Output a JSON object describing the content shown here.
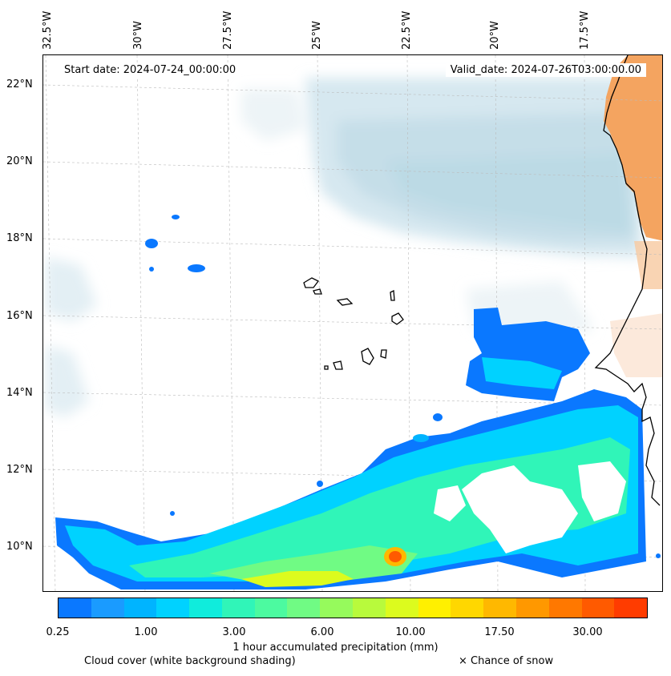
{
  "map": {
    "lon_labels": [
      "32.5°W",
      "30°W",
      "27.5°W",
      "25°W",
      "22.5°W",
      "20°W",
      "17.5°W"
    ],
    "lat_labels": [
      "22°N",
      "20°N",
      "18°N",
      "16°N",
      "14°N",
      "12°N",
      "10°N"
    ],
    "start_date": "Start date: 2024-07-24_00:00:00",
    "valid_date": "Valid_date: 2024-07-26T03:00:00.00",
    "layers": [
      "Cloud cover shading",
      "Precipitation contours",
      "Land / dust shading",
      "Coastlines",
      "Graticule"
    ]
  },
  "colorbar": {
    "colors": [
      "#0a78ff",
      "#1a9bff",
      "#00b4ff",
      "#00d2ff",
      "#10ecdc",
      "#30f5b8",
      "#4cfaa0",
      "#70fb84",
      "#96fa5c",
      "#b8fa3c",
      "#dcfb1e",
      "#fff000",
      "#ffd700",
      "#ffb800",
      "#ff9800",
      "#ff7800",
      "#ff5a00",
      "#ff3c00"
    ],
    "ticks": [
      "0.25",
      "1.00",
      "3.00",
      "6.00",
      "10.00",
      "17.50",
      "30.00"
    ],
    "label": "1 hour accumulated precipitation (mm)"
  },
  "footer": {
    "cloud_label": "Cloud cover (white background shading)",
    "snow_label": "× Chance of snow"
  }
}
